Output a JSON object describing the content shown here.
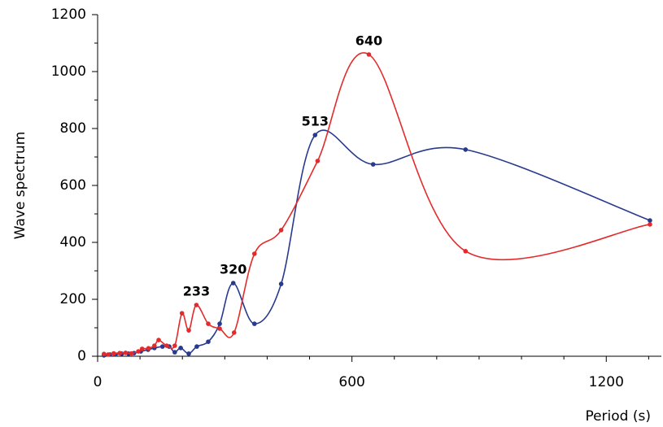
{
  "chart_data": {
    "type": "line",
    "x_label": "Period (s)",
    "y_label": "Wave spectrum",
    "xlim": [
      0,
      1330
    ],
    "ylim": [
      0,
      1200
    ],
    "xticks": [
      0,
      600,
      1200
    ],
    "yticks": [
      0,
      200,
      400,
      600,
      800,
      1000,
      1200
    ],
    "xminorticks": [
      100,
      200,
      300,
      400,
      500,
      700,
      800,
      900,
      1000,
      1100,
      1300
    ],
    "yminorticks": [
      100,
      300,
      500,
      700,
      900,
      1100
    ],
    "annotations": [
      233,
      320,
      513,
      640
    ],
    "series": [
      {
        "color": "#283a8e",
        "x": [
          15,
          29,
          42,
          57,
          73,
          86,
          102,
          119,
          134,
          153,
          169,
          182,
          196,
          215,
          234,
          261,
          288,
          320,
          370,
          433,
          513,
          650,
          868,
          1303
        ],
        "values": [
          3,
          6,
          6,
          9,
          9,
          11,
          17,
          23,
          29,
          34,
          34,
          14,
          29,
          9,
          34,
          51,
          114,
          257,
          114,
          254,
          777,
          674,
          726,
          477
        ]
      },
      {
        "color": "#e32b2b",
        "x": [
          15,
          25,
          38,
          52,
          66,
          80,
          96,
          105,
          120,
          134,
          144,
          163,
          182,
          199,
          215,
          233,
          261,
          288,
          322,
          370,
          433,
          519,
          640,
          868,
          1303
        ],
        "values": [
          8,
          6,
          10,
          11,
          12,
          10,
          17,
          26,
          28,
          37,
          57,
          37,
          37,
          151,
          91,
          180,
          114,
          97,
          83,
          360,
          443,
          686,
          1060,
          369,
          463
        ]
      }
    ]
  }
}
